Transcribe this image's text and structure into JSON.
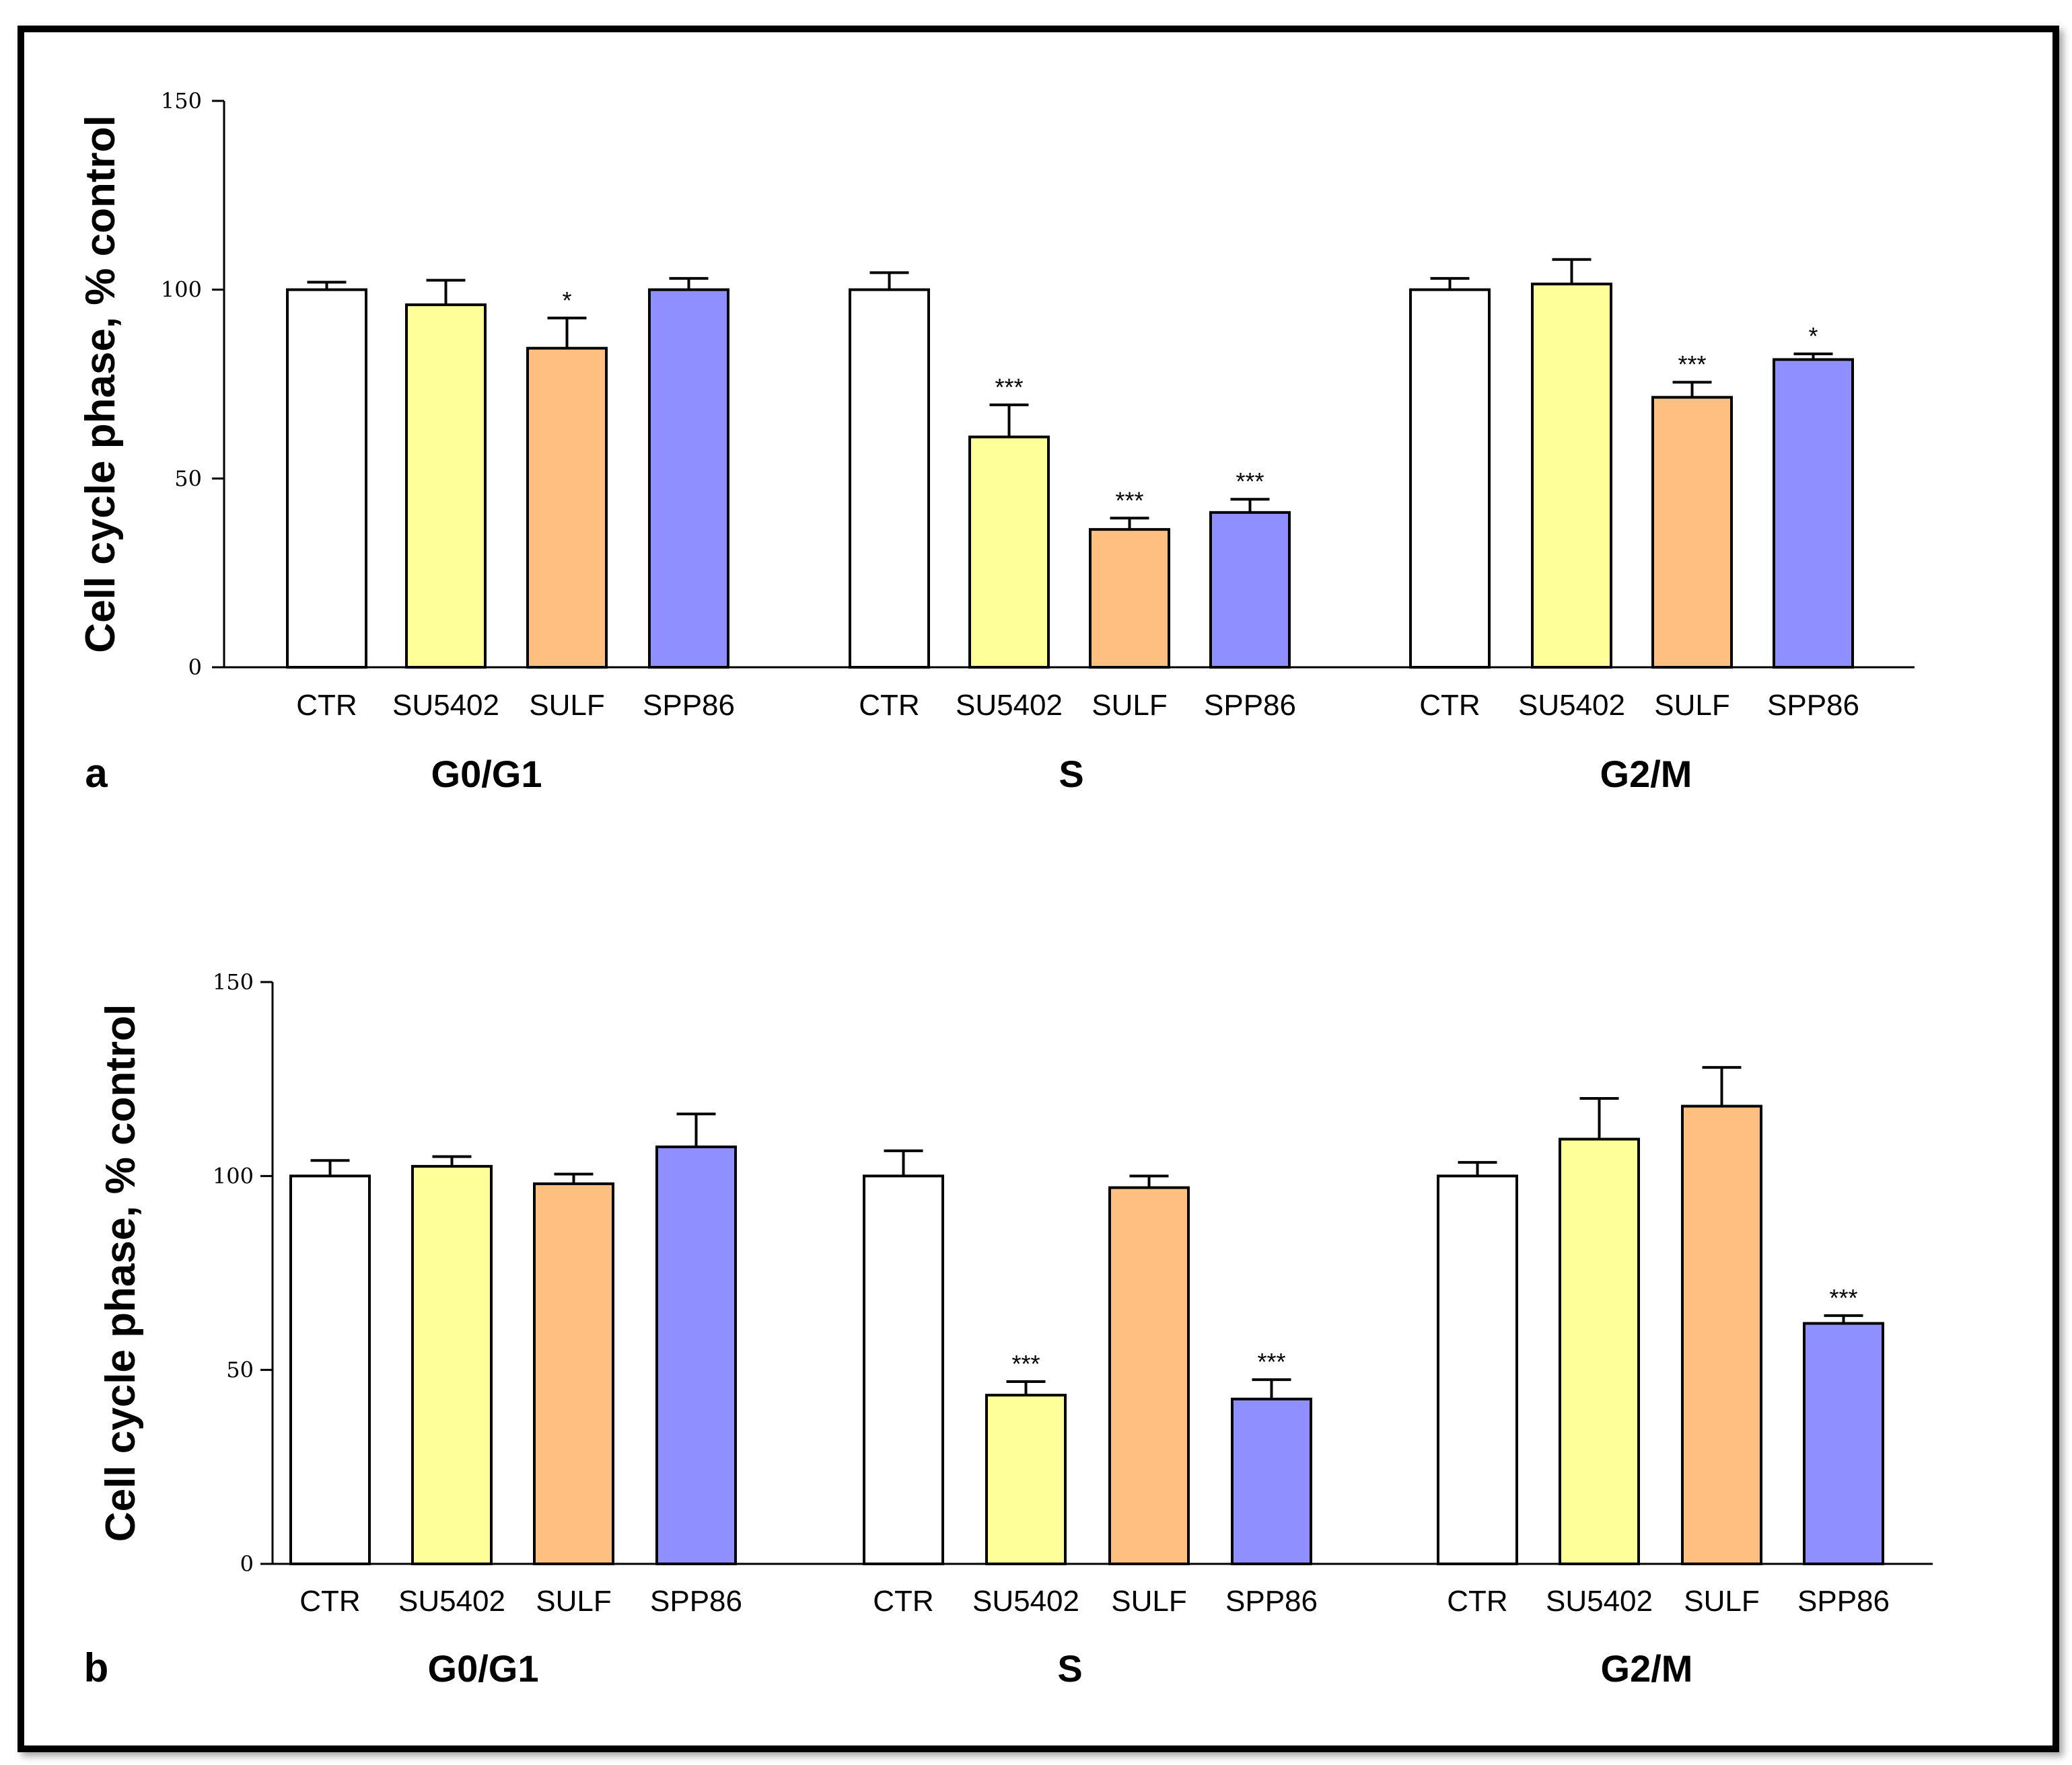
{
  "chart_data": [
    {
      "type": "bar",
      "panel_label": "a",
      "ylabel": "Cell cycle phase, % control",
      "ylim": [
        0,
        150
      ],
      "yticks": [
        "0",
        "50",
        "100",
        "150"
      ],
      "groups": [
        {
          "name": "G0/G1",
          "categories": [
            "CTR",
            "SU5402",
            "SULF",
            "SPP86"
          ],
          "values": [
            100,
            96,
            84.5,
            100
          ],
          "errors": [
            2,
            6.5,
            8,
            3
          ],
          "significance": [
            "",
            "",
            "*",
            ""
          ]
        },
        {
          "name": "S",
          "categories": [
            "CTR",
            "SU5402",
            "SULF",
            "SPP86"
          ],
          "values": [
            100,
            61,
            36.5,
            41
          ],
          "errors": [
            4.5,
            8.5,
            3,
            3.5
          ],
          "significance": [
            "",
            "***",
            "***",
            "***"
          ]
        },
        {
          "name": "G2/M",
          "categories": [
            "CTR",
            "SU5402",
            "SULF",
            "SPP86"
          ],
          "values": [
            100,
            101.5,
            71.5,
            81.5
          ],
          "errors": [
            3,
            6.5,
            4,
            1.5
          ],
          "significance": [
            "",
            "",
            "***",
            "*"
          ]
        }
      ],
      "colors": {
        "CTR": "#ffffff",
        "SU5402": "#ffff99",
        "SULF": "#ffbf80",
        "SPP86": "#8f8fff"
      }
    },
    {
      "type": "bar",
      "panel_label": "b",
      "ylabel": "Cell cycle phase, % control",
      "ylim": [
        0,
        150
      ],
      "yticks": [
        "0",
        "50",
        "100",
        "150"
      ],
      "groups": [
        {
          "name": "G0/G1",
          "categories": [
            "CTR",
            "SU5402",
            "SULF",
            "SPP86"
          ],
          "values": [
            100,
            102.5,
            98,
            107.5
          ],
          "errors": [
            4,
            2.5,
            2.5,
            8.5
          ],
          "significance": [
            "",
            "",
            "",
            ""
          ]
        },
        {
          "name": "S",
          "categories": [
            "CTR",
            "SU5402",
            "SULF",
            "SPP86"
          ],
          "values": [
            100,
            43.5,
            97,
            42.5
          ],
          "errors": [
            6.5,
            3.5,
            3,
            5
          ],
          "significance": [
            "",
            "***",
            "",
            "***"
          ]
        },
        {
          "name": "G2/M",
          "categories": [
            "CTR",
            "SU5402",
            "SULF",
            "SPP86"
          ],
          "values": [
            100,
            109.5,
            118,
            62
          ],
          "errors": [
            3.5,
            10.5,
            10,
            2
          ],
          "significance": [
            "",
            "",
            "",
            "***"
          ]
        }
      ],
      "colors": {
        "CTR": "#ffffff",
        "SU5402": "#ffff99",
        "SULF": "#ffbf80",
        "SPP86": "#8f8fff"
      }
    }
  ]
}
